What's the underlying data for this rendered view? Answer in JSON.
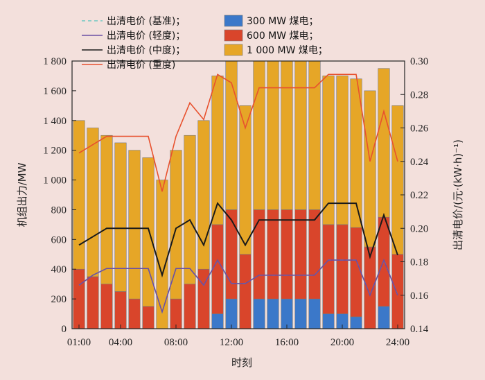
{
  "chart_data": {
    "type": "bar",
    "stacked": true,
    "background": "#f3e0dc",
    "xlabel": "时刻",
    "ylabel": "机组出力/MW",
    "y2label": "出清电价/(元·(kW·h)⁻¹)",
    "ylim": [
      0,
      1800
    ],
    "y2lim": [
      0.14,
      0.3
    ],
    "yticks": [
      "0",
      "200",
      "400",
      "600",
      "800",
      "1 000",
      "1 200",
      "1 400",
      "1 600",
      "1 800"
    ],
    "y2ticks": [
      "0.14",
      "0.16",
      "0.18",
      "0.20",
      "0.22",
      "0.24",
      "0.26",
      "0.28",
      "0.30"
    ],
    "xticks": [
      {
        "hour": 1,
        "label": "01:00"
      },
      {
        "hour": 4,
        "label": "04:00"
      },
      {
        "hour": 8,
        "label": "08:00"
      },
      {
        "hour": 12,
        "label": "12:00"
      },
      {
        "hour": 16,
        "label": "16:00"
      },
      {
        "hour": 20,
        "label": "20:00"
      },
      {
        "hour": 24,
        "label": "24:00"
      }
    ],
    "hours": [
      1,
      2,
      3,
      4,
      5,
      6,
      7,
      8,
      9,
      10,
      11,
      12,
      13,
      14,
      15,
      16,
      17,
      18,
      19,
      20,
      21,
      22,
      23,
      24
    ],
    "bar_series": [
      {
        "name": "300 MW 煤电",
        "color": "#3b78c9",
        "values": [
          0,
          0,
          0,
          0,
          0,
          0,
          0,
          0,
          0,
          0,
          100,
          200,
          0,
          200,
          200,
          200,
          200,
          200,
          100,
          100,
          80,
          0,
          150,
          0
        ]
      },
      {
        "name": "600 MW 煤电",
        "color": "#d9452b",
        "values": [
          400,
          350,
          300,
          250,
          200,
          150,
          0,
          200,
          300,
          400,
          600,
          600,
          500,
          600,
          600,
          600,
          600,
          600,
          600,
          600,
          600,
          550,
          600,
          500
        ]
      },
      {
        "name": "1 000 MW 煤电",
        "color": "#e6a627",
        "values": [
          1000,
          1000,
          1000,
          1000,
          1000,
          1000,
          1000,
          1000,
          1000,
          1000,
          1000,
          1000,
          1000,
          1000,
          1000,
          1000,
          1000,
          1000,
          1000,
          1000,
          1000,
          1050,
          1000,
          1000
        ]
      }
    ],
    "line_series": [
      {
        "name": "出清电价 (基准)",
        "color": "#6dc8c2",
        "dashed": true,
        "values": [
          0.166,
          0.172,
          0.176,
          0.176,
          0.176,
          0.176,
          0.15,
          0.176,
          0.176,
          0.166,
          0.181,
          0.167,
          0.167,
          0.172,
          0.172,
          0.172,
          0.172,
          0.172,
          0.181,
          0.181,
          0.181,
          0.16,
          0.181,
          0.16
        ]
      },
      {
        "name": "出清电价 (轻度)",
        "color": "#6b4fa3",
        "dashed": false,
        "values": [
          0.166,
          0.172,
          0.176,
          0.176,
          0.176,
          0.176,
          0.15,
          0.176,
          0.176,
          0.166,
          0.181,
          0.167,
          0.167,
          0.172,
          0.172,
          0.172,
          0.172,
          0.172,
          0.181,
          0.181,
          0.181,
          0.16,
          0.181,
          0.16
        ]
      },
      {
        "name": "出清电价 (中度)",
        "color": "#1a1a1a",
        "dashed": false,
        "values": [
          0.19,
          0.195,
          0.2,
          0.2,
          0.2,
          0.2,
          0.172,
          0.2,
          0.205,
          0.19,
          0.215,
          0.205,
          0.19,
          0.205,
          0.205,
          0.205,
          0.205,
          0.205,
          0.215,
          0.215,
          0.215,
          0.183,
          0.208,
          0.184
        ]
      },
      {
        "name": "出清电价 (重度)",
        "color": "#e8512e",
        "dashed": false,
        "values": [
          0.245,
          0.25,
          0.255,
          0.255,
          0.255,
          0.255,
          0.222,
          0.255,
          0.275,
          0.265,
          0.292,
          0.287,
          0.26,
          0.284,
          0.284,
          0.284,
          0.284,
          0.284,
          0.292,
          0.292,
          0.292,
          0.24,
          0.27,
          0.24
        ]
      }
    ],
    "legend": {
      "placement": "top-left",
      "entries": [
        {
          "name": "出清电价 (基准)；",
          "kind": "line",
          "color": "#6dc8c2",
          "dashed": true
        },
        {
          "name": "出清电价 (轻度)；",
          "kind": "line",
          "color": "#6b4fa3",
          "dashed": false
        },
        {
          "name": "出清电价 (中度)；",
          "kind": "line",
          "color": "#1a1a1a",
          "dashed": false
        },
        {
          "name": "出清电价 (重度)",
          "kind": "line",
          "color": "#e8512e",
          "dashed": false
        },
        {
          "name": "300 MW 煤电；",
          "kind": "box",
          "color": "#3b78c9"
        },
        {
          "name": "600 MW 煤电；",
          "kind": "box",
          "color": "#d9452b"
        },
        {
          "name": "1 000 MW 煤电；",
          "kind": "box",
          "color": "#e6a627"
        }
      ]
    }
  }
}
